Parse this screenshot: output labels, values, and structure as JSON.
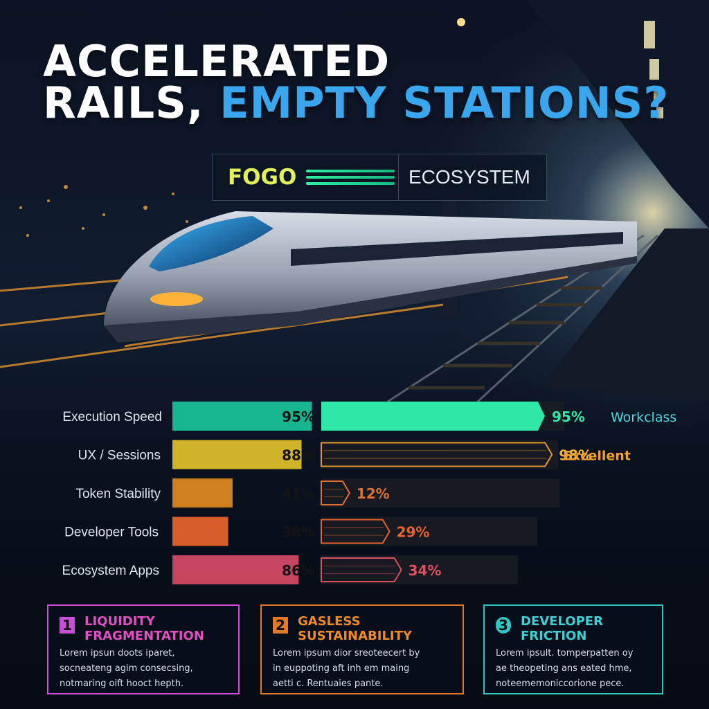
{
  "header": {
    "title_line1": "ACCELERATED",
    "title_line2_plain": "RAILS,",
    "title_line2_accent": "EMPTY STATIONS?"
  },
  "brand": {
    "name": "FOGO",
    "label": "ECOSYSTEM"
  },
  "chart_data": {
    "type": "bar",
    "categories": [
      "Execution Speed",
      "UX / Sessions",
      "Token Stability",
      "Developer Tools",
      "Ecosystem Apps"
    ],
    "series": [
      {
        "values": [
          95,
          88,
          41,
          38,
          86
        ],
        "value_labels": [
          "95%",
          "88%",
          "41%",
          "38%",
          "86%"
        ]
      },
      {
        "values": [
          95,
          98,
          12,
          29,
          34
        ],
        "value_labels": [
          "95%",
          "98%",
          "12%",
          "29%",
          "34%"
        ]
      }
    ],
    "ratings": [
      "Workclass",
      "Excellent",
      "",
      "",
      ""
    ],
    "ylim": [
      0,
      100
    ]
  },
  "colors": {
    "bars_left": [
      "#19c49a",
      "#e3c02c",
      "#e08a1e",
      "#e8632a",
      "#d64a66"
    ],
    "bars_right": [
      "#2fe7a6",
      "#e49a2a",
      "#e2702c",
      "#e8622c",
      "#e04e62"
    ],
    "rating_text": [
      "#4ad8e0",
      "#f0a030",
      "",
      "",
      ""
    ]
  },
  "panels": [
    {
      "number": "1",
      "title": "LIQUIDITY FRAGMENTATION",
      "body": [
        "Lorem ipsun doots iparet,",
        "socneateng agim consecsing,",
        "notmaring oift hooct hepth."
      ],
      "color": "#c84fd8",
      "title_color": "#e050c0"
    },
    {
      "number": "2",
      "title": "GASLESS SUSTAINABILITY",
      "body": [
        "Lorem ipsum dior sreoteecert by",
        "in euppoting aft inh em maing",
        "aetti c. Rentuaies pante."
      ],
      "color": "#e07a24",
      "title_color": "#f28a22"
    },
    {
      "number": "3",
      "title": "DEVELOPER FRICTION",
      "body": [
        "Lorem ipsult. tomperpatten oy",
        "ae theopeting ans eated hme,",
        "noteememoniccorione pece."
      ],
      "color": "#2ec6c4",
      "title_color": "#3fd0d4"
    }
  ]
}
